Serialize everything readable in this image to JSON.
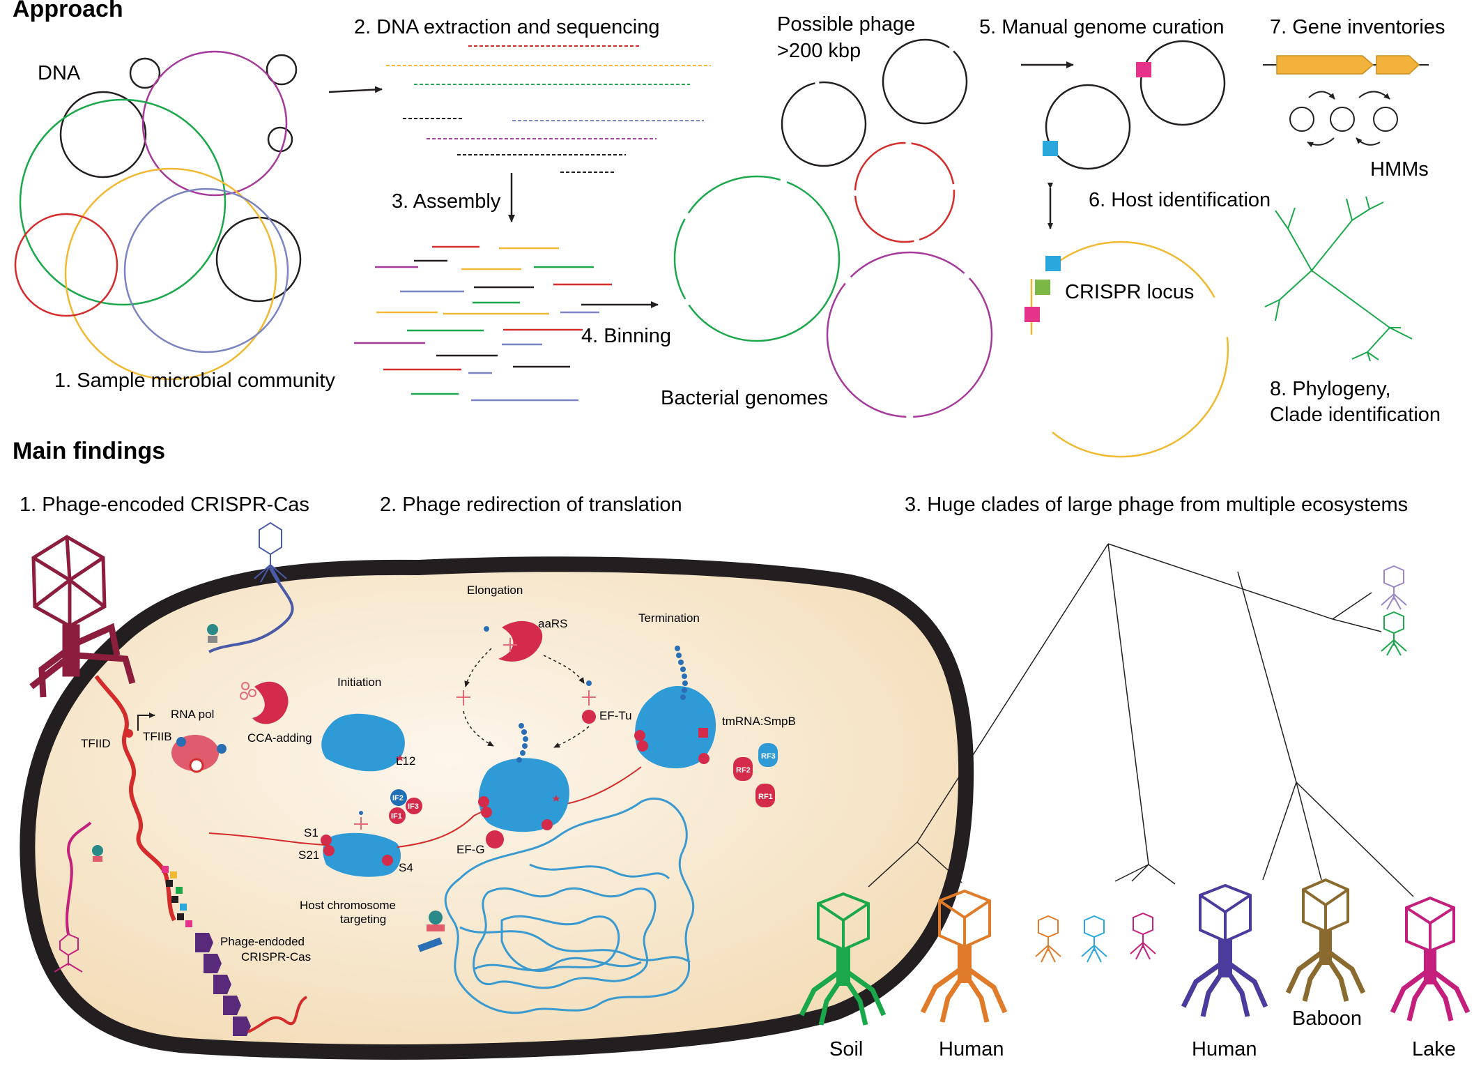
{
  "approach": {
    "title": "Approach",
    "dna": "DNA",
    "step1": "1. Sample microbial community",
    "step2": "2. DNA extraction and  sequencing",
    "step3": "3. Assembly",
    "step4": "4. Binning",
    "phage_line1": "Possible phage",
    "phage_line2": ">200 kbp",
    "bacterial_genomes": "Bacterial genomes",
    "step5": "5. Manual genome curation",
    "step6": "6. Host identification",
    "crispr_locus": "CRISPR locus",
    "step7": "7. Gene inventories",
    "hmms": "HMMs",
    "step8_line1": "8. Phylogeny,",
    "step8_line2": "Clade identification"
  },
  "findings": {
    "title": "Main findings",
    "f1": "1. Phage-encoded CRISPR-Cas",
    "f2": "2. Phage redirection of translation",
    "f3": "3. Huge clades of large phage from multiple ecosystems"
  },
  "cell": {
    "rna_pol": "RNA pol",
    "tfiid": "TFIID",
    "tfiib": "TFIIB",
    "cca": "CCA-adding",
    "initiation": "Initiation",
    "l12": "L12",
    "if2": "IF2",
    "if3": "IF3",
    "if1": "IF1",
    "s1": "S1",
    "s21": "S21",
    "s4": "S4",
    "elongation": "Elongation",
    "aars": "aaRS",
    "eftu": "EF-Tu",
    "efg": "EF-G",
    "termination": "Termination",
    "tmrna": "tmRNA:SmpB",
    "rf1": "RF1",
    "rf2": "RF2",
    "rf3": "RF3",
    "host_chrom_1": "Host chromosome",
    "host_chrom_2": "targeting",
    "crispr_1": "Phage-endoded",
    "crispr_2": "CRISPR-Cas"
  },
  "tree_labels": {
    "soil": "Soil",
    "human1": "Human",
    "human2": "Human",
    "baboon": "Baboon",
    "lake": "Lake"
  },
  "colors": {
    "green": "#1aa84b",
    "orange": "#e07b29",
    "purple": "#4a3b9c",
    "brown": "#8a6a2e",
    "magenta": "#c41f7d",
    "cyan": "#2aa7dc",
    "cell_fill": "#f8e8cf",
    "ribosome": "#2e9bd6",
    "rna_red": "#d42b2b",
    "gene_arrow": "#f3b23b"
  }
}
